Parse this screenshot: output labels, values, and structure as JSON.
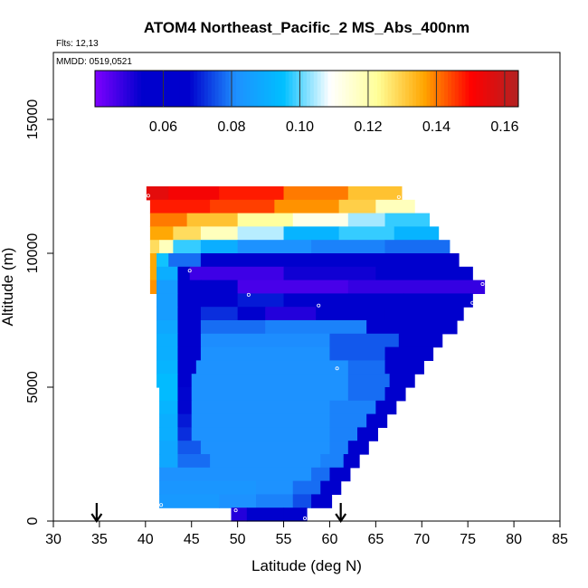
{
  "chart_data": {
    "type": "heatmap",
    "title": "ATOM4 Northeast_Pacific_2 MS_Abs_400nm",
    "flights_label": "Flts: 12,13",
    "dates_label": "MMDD: 0519,0521",
    "xlabel": "Latitude (deg N)",
    "ylabel": "Altitude (m)",
    "xlim": [
      30,
      85
    ],
    "ylim": [
      0,
      17500
    ],
    "xticks": [
      "30",
      "35",
      "40",
      "45",
      "50",
      "55",
      "60",
      "65",
      "70",
      "75",
      "80",
      "85"
    ],
    "xtick_values": [
      30,
      35,
      40,
      45,
      50,
      55,
      60,
      65,
      70,
      75,
      80,
      85
    ],
    "yticks": [
      "0",
      "5000",
      "10000",
      "15000"
    ],
    "ytick_values": [
      0,
      5000,
      10000,
      15000
    ],
    "colorbar": {
      "range": [
        0.04,
        0.164
      ],
      "ticks": [
        "0.06",
        "0.08",
        "0.10",
        "0.12",
        "0.14",
        "0.16"
      ],
      "tick_values": [
        0.06,
        0.08,
        0.1,
        0.12,
        0.14,
        0.16
      ],
      "colors": [
        "#7f00ff",
        "#0000cd",
        "#0000cd",
        "#1e90ff",
        "#00bfff",
        "#ffffff",
        "#ffff99",
        "#ffa500",
        "#ff0000",
        "#b22222"
      ]
    },
    "arrows_lat": [
      34.7,
      61.2
    ],
    "rows": [
      {
        "alt": 12250,
        "segments": [
          [
            40.1,
            42.5,
            0.155
          ],
          [
            42.5,
            48,
            0.152
          ],
          [
            48,
            55,
            0.148
          ],
          [
            55,
            62,
            0.14
          ],
          [
            62,
            67.8,
            0.132
          ]
        ]
      },
      {
        "alt": 11750,
        "segments": [
          [
            40.5,
            47,
            0.148
          ],
          [
            47,
            54,
            0.145
          ],
          [
            54,
            61,
            0.138
          ],
          [
            61,
            65,
            0.13
          ],
          [
            65,
            69.2,
            0.118
          ]
        ]
      },
      {
        "alt": 11250,
        "segments": [
          [
            40.5,
            44.5,
            0.14
          ],
          [
            44.5,
            50,
            0.132
          ],
          [
            50,
            56,
            0.122
          ],
          [
            56,
            62,
            0.112
          ],
          [
            62,
            66,
            0.104
          ],
          [
            66,
            70.8,
            0.098
          ]
        ]
      },
      {
        "alt": 10750,
        "segments": [
          [
            40.5,
            43,
            0.136
          ],
          [
            43,
            46,
            0.128
          ],
          [
            46,
            50,
            0.118
          ],
          [
            50,
            55,
            0.105
          ],
          [
            55,
            61,
            0.092
          ],
          [
            61,
            67,
            0.098
          ],
          [
            67,
            71.8,
            0.092
          ]
        ]
      },
      {
        "alt": 10250,
        "segments": [
          [
            40.5,
            41.5,
            0.128
          ],
          [
            41.5,
            43,
            0.118
          ],
          [
            43,
            46,
            0.098
          ],
          [
            46,
            50,
            0.09
          ],
          [
            50,
            58,
            0.082
          ],
          [
            58,
            66,
            0.08
          ],
          [
            66,
            73,
            0.078
          ]
        ]
      },
      {
        "alt": 9750,
        "segments": [
          [
            40.5,
            41.2,
            0.136
          ],
          [
            41.2,
            42.5,
            0.096
          ],
          [
            42.5,
            46,
            0.078
          ],
          [
            46,
            52,
            0.066
          ],
          [
            52,
            62,
            0.06
          ],
          [
            62,
            74,
            0.062
          ]
        ]
      },
      {
        "alt": 9250,
        "segments": [
          [
            40.5,
            41.2,
            0.136
          ],
          [
            41.2,
            43.5,
            0.09
          ],
          [
            43.5,
            44.8,
            0.062
          ],
          [
            44.8,
            55,
            0.047
          ],
          [
            55,
            65,
            0.052
          ],
          [
            65,
            75.5,
            0.055
          ]
        ]
      },
      {
        "alt": 8750,
        "segments": [
          [
            40.5,
            41.2,
            0.138
          ],
          [
            41.2,
            43.5,
            0.085
          ],
          [
            43.5,
            46,
            0.06
          ],
          [
            46,
            50,
            0.065
          ],
          [
            50,
            62,
            0.046
          ],
          [
            62,
            76.8,
            0.048
          ]
        ]
      },
      {
        "alt": 8250,
        "segments": [
          [
            41.2,
            43.5,
            0.085
          ],
          [
            43.5,
            46,
            0.06
          ],
          [
            46,
            50,
            0.058
          ],
          [
            50,
            55,
            0.07
          ],
          [
            55,
            62,
            0.062
          ],
          [
            62,
            68,
            0.058
          ],
          [
            68,
            75.5,
            0.06
          ]
        ]
      },
      {
        "alt": 7750,
        "segments": [
          [
            41.2,
            43.5,
            0.085
          ],
          [
            43.5,
            46,
            0.058
          ],
          [
            46,
            50,
            0.072
          ],
          [
            50,
            53,
            0.06
          ],
          [
            53,
            58.5,
            0.05
          ],
          [
            58.5,
            66,
            0.06
          ],
          [
            66,
            74.5,
            0.058
          ]
        ]
      },
      {
        "alt": 7250,
        "segments": [
          [
            41.2,
            43.5,
            0.088
          ],
          [
            43.5,
            46,
            0.06
          ],
          [
            46,
            53,
            0.078
          ],
          [
            53,
            64,
            0.08
          ],
          [
            64,
            73.8,
            0.06
          ]
        ]
      },
      {
        "alt": 6750,
        "segments": [
          [
            41.2,
            43.5,
            0.09
          ],
          [
            43.5,
            46,
            0.062
          ],
          [
            46,
            60,
            0.081
          ],
          [
            60,
            67.5,
            0.076
          ],
          [
            67.5,
            72.2,
            0.06
          ]
        ]
      },
      {
        "alt": 6250,
        "segments": [
          [
            41.2,
            43.5,
            0.09
          ],
          [
            43.5,
            46,
            0.062
          ],
          [
            46,
            60,
            0.082
          ],
          [
            60,
            66,
            0.076
          ],
          [
            66,
            71.2,
            0.06
          ]
        ]
      },
      {
        "alt": 5750,
        "segments": [
          [
            41.2,
            43.5,
            0.092
          ],
          [
            43.5,
            45.5,
            0.064
          ],
          [
            45.5,
            62,
            0.082
          ],
          [
            62,
            66,
            0.078
          ],
          [
            66,
            70.2,
            0.06
          ]
        ]
      },
      {
        "alt": 5250,
        "segments": [
          [
            41.2,
            43.5,
            0.094
          ],
          [
            43.5,
            45,
            0.066
          ],
          [
            45,
            62,
            0.082
          ],
          [
            62,
            66.5,
            0.078
          ],
          [
            66.5,
            69.2,
            0.06
          ]
        ]
      },
      {
        "alt": 4750,
        "segments": [
          [
            41.5,
            43.5,
            0.094
          ],
          [
            43.5,
            45,
            0.068
          ],
          [
            45,
            62,
            0.082
          ],
          [
            62,
            66,
            0.078
          ],
          [
            66,
            68.2,
            0.06
          ]
        ]
      },
      {
        "alt": 4250,
        "segments": [
          [
            41.5,
            43.5,
            0.092
          ],
          [
            43.5,
            45,
            0.068
          ],
          [
            45,
            60,
            0.082
          ],
          [
            60,
            65,
            0.08
          ],
          [
            65,
            67.2,
            0.06
          ]
        ]
      },
      {
        "alt": 3750,
        "segments": [
          [
            41.5,
            43.5,
            0.09
          ],
          [
            43.5,
            45,
            0.07
          ],
          [
            45,
            60,
            0.082
          ],
          [
            60,
            64,
            0.08
          ],
          [
            64,
            66.2,
            0.06
          ]
        ]
      },
      {
        "alt": 3250,
        "segments": [
          [
            41.5,
            43.5,
            0.09
          ],
          [
            43.5,
            45,
            0.072
          ],
          [
            45,
            60,
            0.082
          ],
          [
            60,
            63,
            0.08
          ],
          [
            63,
            65.2,
            0.06
          ]
        ]
      },
      {
        "alt": 2750,
        "segments": [
          [
            41.5,
            43.5,
            0.088
          ],
          [
            43.5,
            46,
            0.076
          ],
          [
            46,
            60,
            0.082
          ],
          [
            60,
            62,
            0.08
          ],
          [
            62,
            64.2,
            0.06
          ]
        ]
      },
      {
        "alt": 2250,
        "segments": [
          [
            41.5,
            43.5,
            0.088
          ],
          [
            43.5,
            47,
            0.078
          ],
          [
            47,
            59,
            0.082
          ],
          [
            59,
            61.5,
            0.08
          ],
          [
            61.5,
            63.2,
            0.06
          ]
        ]
      },
      {
        "alt": 1750,
        "segments": [
          [
            41.5,
            52,
            0.082
          ],
          [
            52,
            58,
            0.082
          ],
          [
            58,
            60,
            0.078
          ],
          [
            60,
            62.2,
            0.06
          ]
        ]
      },
      {
        "alt": 1250,
        "segments": [
          [
            41.5,
            52,
            0.083
          ],
          [
            52,
            56,
            0.082
          ],
          [
            56,
            59,
            0.078
          ],
          [
            59,
            61.2,
            0.062
          ]
        ]
      },
      {
        "alt": 750,
        "segments": [
          [
            41.5,
            48,
            0.084
          ],
          [
            48,
            52,
            0.082
          ],
          [
            52,
            56,
            0.08
          ],
          [
            56,
            58,
            0.075
          ],
          [
            58,
            60.2,
            0.062
          ]
        ]
      },
      {
        "alt": 250,
        "segments": [
          [
            49.3,
            51,
            0.05
          ],
          [
            51,
            55,
            0.058
          ],
          [
            55,
            57.5,
            0.06
          ]
        ]
      }
    ],
    "markers": [
      [
        40.3,
        12150
      ],
      [
        67.5,
        12100
      ],
      [
        44.8,
        9350
      ],
      [
        51.2,
        8450
      ],
      [
        58.8,
        8050
      ],
      [
        76.6,
        8850
      ],
      [
        75.5,
        8150
      ],
      [
        60.8,
        5700
      ],
      [
        41.7,
        600
      ],
      [
        49.8,
        400
      ],
      [
        57.3,
        100
      ]
    ]
  }
}
